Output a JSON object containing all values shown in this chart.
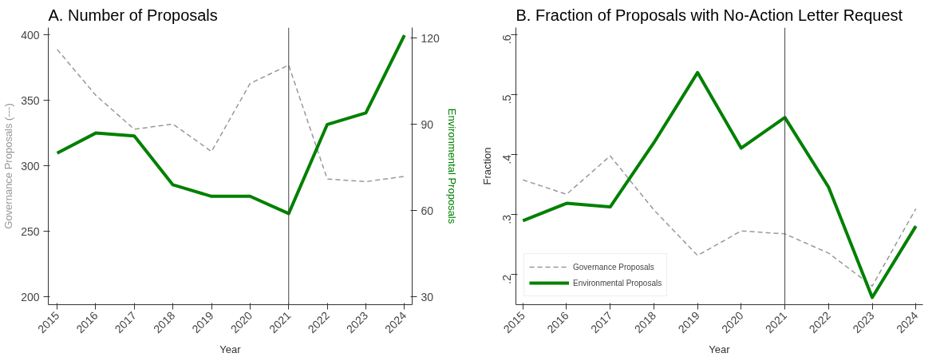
{
  "chart_data": [
    {
      "type": "line",
      "title": "A. Number of Proposals",
      "xlabel": "Year",
      "ylabel": "Governance Proposals (---)",
      "y2label": "Environmental Proposals",
      "x": [
        2015,
        2016,
        2017,
        2018,
        2019,
        2020,
        2021,
        2022,
        2023,
        2024
      ],
      "series": [
        {
          "color": "#999999",
          "line_style": "dashed",
          "values": [
            389,
            354,
            328,
            332,
            311,
            363,
            377,
            290,
            288,
            292
          ]
        },
        {
          "color": "#008000",
          "line_style": "solid",
          "axis": "y2",
          "values": [
            80,
            87,
            86,
            69,
            65,
            65,
            59,
            90,
            94,
            121
          ]
        }
      ],
      "xlim": [
        2014.77,
        2024.2
      ],
      "xticks": [
        2015,
        2016,
        2017,
        2018,
        2019,
        2020,
        2021,
        2022,
        2023,
        2024
      ],
      "ylim": [
        194,
        405.7
      ],
      "yticks": [
        200,
        250,
        300,
        350,
        400
      ],
      "y2lim": [
        27.3,
        123.7
      ],
      "y2ticks": [
        30,
        60,
        90,
        120
      ],
      "ref_lines": [
        {
          "axis": "x",
          "value": 2021,
          "color": "#444444"
        }
      ],
      "grid": false,
      "legend": false
    },
    {
      "type": "line",
      "title": "B. Fraction of Proposals with No-Action Letter Request",
      "xlabel": "Year",
      "ylabel": "Fraction",
      "x": [
        2015,
        2016,
        2017,
        2018,
        2019,
        2020,
        2021,
        2022,
        2023,
        2024
      ],
      "series": [
        {
          "name": "Governance Proposals",
          "color": "#999999",
          "line_style": "dashed",
          "values": [
            0.358,
            0.334,
            0.398,
            0.308,
            0.232,
            0.273,
            0.268,
            0.236,
            0.181,
            0.31
          ]
        },
        {
          "name": "Environmental Proposals",
          "color": "#008000",
          "line_style": "solid",
          "values": [
            0.29,
            0.319,
            0.313,
            0.42,
            0.537,
            0.411,
            0.462,
            0.346,
            0.162,
            0.281
          ]
        }
      ],
      "xlim": [
        2014.84,
        2024.16
      ],
      "xticks": [
        2015,
        2016,
        2017,
        2018,
        2019,
        2020,
        2021,
        2022,
        2023,
        2024
      ],
      "ylim": [
        0.15,
        0.612
      ],
      "yticks": [
        {
          "value": 0.2,
          "label": ".2"
        },
        {
          "value": 0.3,
          "label": ".3"
        },
        {
          "value": 0.4,
          "label": ".4"
        },
        {
          "value": 0.5,
          "label": ".5"
        },
        {
          "value": 0.6,
          "label": ".6"
        }
      ],
      "ref_lines": [
        {
          "axis": "x",
          "value": 2021,
          "color": "#444444"
        }
      ],
      "grid": false,
      "legend": "bottom left"
    }
  ]
}
